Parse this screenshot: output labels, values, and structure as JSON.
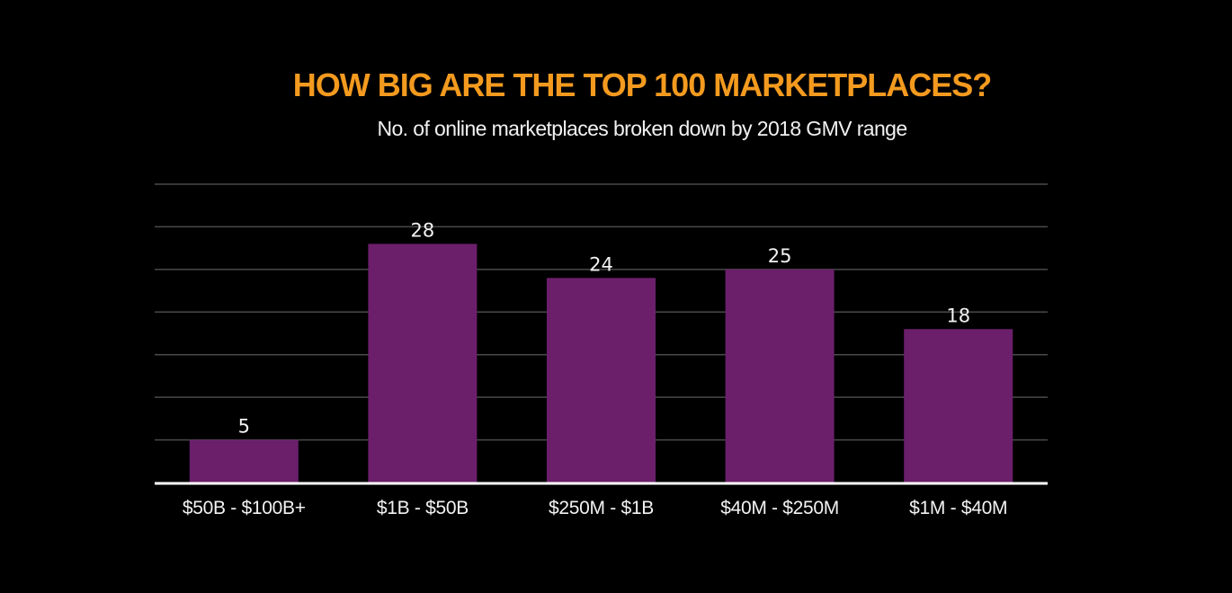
{
  "chart_data": {
    "type": "bar",
    "title": "HOW BIG ARE THE TOP 100 MARKETPLACES?",
    "subtitle": "No. of  online marketplaces  broken down by 2018 GMV range",
    "categories": [
      "$50B - $100B+",
      "$1B - $50B",
      "$250M - $1B",
      "$40M - $250M",
      "$1M - $40M"
    ],
    "values": [
      5,
      28,
      24,
      25,
      18
    ],
    "xlabel": "",
    "ylabel": "",
    "ylim": [
      0,
      35
    ],
    "ytick_step": 5,
    "grid": true,
    "legend": "none",
    "colors": {
      "bar": "#6b1f6b",
      "title": "#f39a1f",
      "grid": "#4a4a4a",
      "axis": "#ffffff",
      "text": "#f2f2f2"
    }
  }
}
